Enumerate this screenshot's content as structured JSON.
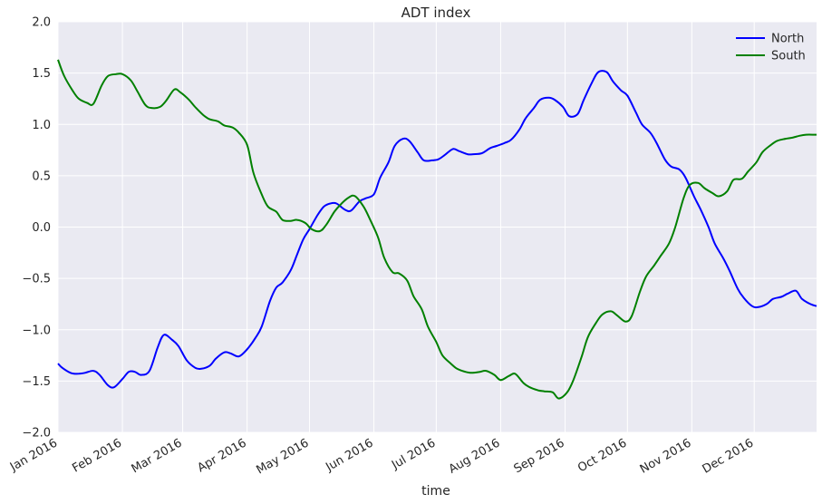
{
  "chart_data": {
    "type": "line",
    "title": "ADT index",
    "xlabel": "time",
    "ylabel": "",
    "ylim": [
      -2.0,
      2.0
    ],
    "yticks": [
      -2.0,
      -1.5,
      -1.0,
      -0.5,
      0.0,
      0.5,
      1.0,
      1.5,
      2.0
    ],
    "ytick_labels": [
      "−2.0",
      "−1.5",
      "−1.0",
      "−0.5",
      "0.0",
      "0.5",
      "1.0",
      "1.5",
      "2.0"
    ],
    "xlim": [
      "2016-01-01",
      "2016-12-31"
    ],
    "xticks": [
      "2016-01-01",
      "2016-02-01",
      "2016-03-01",
      "2016-04-01",
      "2016-05-01",
      "2016-06-01",
      "2016-07-01",
      "2016-08-01",
      "2016-09-01",
      "2016-10-01",
      "2016-11-01",
      "2016-12-01"
    ],
    "xtick_labels": [
      "Jan 2016",
      "Feb 2016",
      "Mar 2016",
      "Apr 2016",
      "May 2016",
      "Jun 2016",
      "Jul 2016",
      "Aug 2016",
      "Sep 2016",
      "Oct 2016",
      "Nov 2016",
      "Dec 2016"
    ],
    "grid": true,
    "legend_position": "top-right",
    "background_color": "#EAEAF2",
    "series": [
      {
        "name": "North",
        "color": "#0000FF",
        "x": [
          "2016-01-01",
          "2016-01-03",
          "2016-01-07",
          "2016-01-10",
          "2016-01-14",
          "2016-01-18",
          "2016-01-21",
          "2016-01-25",
          "2016-01-28",
          "2016-02-01",
          "2016-02-04",
          "2016-02-07",
          "2016-02-10",
          "2016-02-14",
          "2016-02-18",
          "2016-02-21",
          "2016-02-25",
          "2016-02-28",
          "2016-03-03",
          "2016-03-07",
          "2016-03-10",
          "2016-03-14",
          "2016-03-17",
          "2016-03-21",
          "2016-03-24",
          "2016-03-28",
          "2016-04-01",
          "2016-04-05",
          "2016-04-08",
          "2016-04-12",
          "2016-04-15",
          "2016-04-18",
          "2016-04-22",
          "2016-04-25",
          "2016-04-28",
          "2016-05-01",
          "2016-05-05",
          "2016-05-08",
          "2016-05-11",
          "2016-05-14",
          "2016-05-18",
          "2016-05-21",
          "2016-05-25",
          "2016-05-28",
          "2016-06-01",
          "2016-06-04",
          "2016-06-08",
          "2016-06-11",
          "2016-06-15",
          "2016-06-18",
          "2016-06-22",
          "2016-06-25",
          "2016-06-29",
          "2016-07-02",
          "2016-07-05",
          "2016-07-09",
          "2016-07-12",
          "2016-07-16",
          "2016-07-19",
          "2016-07-23",
          "2016-07-27",
          "2016-07-30",
          "2016-08-03",
          "2016-08-06",
          "2016-08-10",
          "2016-08-13",
          "2016-08-17",
          "2016-08-20",
          "2016-08-24",
          "2016-08-27",
          "2016-08-31",
          "2016-09-03",
          "2016-09-07",
          "2016-09-10",
          "2016-09-14",
          "2016-09-17",
          "2016-09-21",
          "2016-09-24",
          "2016-09-28",
          "2016-10-01",
          "2016-10-05",
          "2016-10-08",
          "2016-10-12",
          "2016-10-15",
          "2016-10-19",
          "2016-10-22",
          "2016-10-26",
          "2016-10-29",
          "2016-11-02",
          "2016-11-05",
          "2016-11-09",
          "2016-11-12",
          "2016-11-16",
          "2016-11-19",
          "2016-11-23",
          "2016-11-26",
          "2016-11-30",
          "2016-12-03",
          "2016-12-07",
          "2016-12-10",
          "2016-12-14",
          "2016-12-17",
          "2016-12-21",
          "2016-12-24",
          "2016-12-28",
          "2016-12-31"
        ],
        "y": [
          -1.33,
          -1.37,
          -1.42,
          -1.43,
          -1.42,
          -1.4,
          -1.44,
          -1.54,
          -1.56,
          -1.48,
          -1.41,
          -1.41,
          -1.44,
          -1.4,
          -1.17,
          -1.05,
          -1.1,
          -1.16,
          -1.3,
          -1.37,
          -1.38,
          -1.35,
          -1.28,
          -1.22,
          -1.23,
          -1.26,
          -1.19,
          -1.08,
          -0.97,
          -0.72,
          -0.59,
          -0.54,
          -0.42,
          -0.27,
          -0.12,
          -0.02,
          0.12,
          0.2,
          0.23,
          0.23,
          0.17,
          0.16,
          0.25,
          0.28,
          0.32,
          0.48,
          0.63,
          0.79,
          0.86,
          0.84,
          0.73,
          0.65,
          0.65,
          0.66,
          0.7,
          0.76,
          0.74,
          0.71,
          0.71,
          0.72,
          0.77,
          0.79,
          0.82,
          0.85,
          0.95,
          1.06,
          1.16,
          1.24,
          1.26,
          1.24,
          1.17,
          1.08,
          1.1,
          1.24,
          1.41,
          1.51,
          1.51,
          1.42,
          1.33,
          1.28,
          1.12,
          1.0,
          0.92,
          0.82,
          0.66,
          0.59,
          0.56,
          0.48,
          0.3,
          0.18,
          0.0,
          -0.16,
          -0.3,
          -0.42,
          -0.6,
          -0.69,
          -0.77,
          -0.78,
          -0.75,
          -0.7,
          -0.68,
          -0.65,
          -0.62,
          -0.7,
          -0.75,
          -0.77
        ]
      },
      {
        "name": "South",
        "color": "#008000",
        "x": [
          "2016-01-01",
          "2016-01-04",
          "2016-01-08",
          "2016-01-11",
          "2016-01-15",
          "2016-01-18",
          "2016-01-22",
          "2016-01-25",
          "2016-01-29",
          "2016-02-01",
          "2016-02-05",
          "2016-02-08",
          "2016-02-12",
          "2016-02-15",
          "2016-02-19",
          "2016-02-22",
          "2016-02-26",
          "2016-02-29",
          "2016-03-04",
          "2016-03-07",
          "2016-03-11",
          "2016-03-14",
          "2016-03-18",
          "2016-03-21",
          "2016-03-25",
          "2016-03-28",
          "2016-04-01",
          "2016-04-04",
          "2016-04-08",
          "2016-04-11",
          "2016-04-15",
          "2016-04-18",
          "2016-04-22",
          "2016-04-25",
          "2016-04-29",
          "2016-05-02",
          "2016-05-06",
          "2016-05-09",
          "2016-05-13",
          "2016-05-16",
          "2016-05-20",
          "2016-05-23",
          "2016-05-27",
          "2016-05-30",
          "2016-06-03",
          "2016-06-06",
          "2016-06-10",
          "2016-06-13",
          "2016-06-17",
          "2016-06-20",
          "2016-06-24",
          "2016-06-27",
          "2016-07-01",
          "2016-07-04",
          "2016-07-08",
          "2016-07-11",
          "2016-07-15",
          "2016-07-18",
          "2016-07-22",
          "2016-07-25",
          "2016-07-29",
          "2016-08-01",
          "2016-08-05",
          "2016-08-08",
          "2016-08-12",
          "2016-08-15",
          "2016-08-19",
          "2016-08-22",
          "2016-08-26",
          "2016-08-29",
          "2016-09-02",
          "2016-09-05",
          "2016-09-09",
          "2016-09-12",
          "2016-09-16",
          "2016-09-19",
          "2016-09-23",
          "2016-09-26",
          "2016-09-30",
          "2016-10-03",
          "2016-10-07",
          "2016-10-10",
          "2016-10-14",
          "2016-10-17",
          "2016-10-21",
          "2016-10-24",
          "2016-10-28",
          "2016-10-31",
          "2016-11-04",
          "2016-11-07",
          "2016-11-11",
          "2016-11-14",
          "2016-11-18",
          "2016-11-21",
          "2016-11-25",
          "2016-11-28",
          "2016-12-02",
          "2016-12-05",
          "2016-12-09",
          "2016-12-12",
          "2016-12-16",
          "2016-12-19",
          "2016-12-23",
          "2016-12-26",
          "2016-12-30",
          "2016-12-31"
        ],
        "y": [
          1.63,
          1.47,
          1.33,
          1.25,
          1.21,
          1.2,
          1.38,
          1.47,
          1.49,
          1.49,
          1.43,
          1.33,
          1.19,
          1.16,
          1.17,
          1.23,
          1.34,
          1.31,
          1.24,
          1.17,
          1.09,
          1.05,
          1.03,
          0.99,
          0.97,
          0.92,
          0.8,
          0.53,
          0.32,
          0.2,
          0.15,
          0.07,
          0.06,
          0.07,
          0.04,
          -0.02,
          -0.04,
          0.02,
          0.15,
          0.22,
          0.29,
          0.3,
          0.2,
          0.08,
          -0.1,
          -0.3,
          -0.44,
          -0.45,
          -0.52,
          -0.67,
          -0.8,
          -0.97,
          -1.12,
          -1.25,
          -1.33,
          -1.38,
          -1.41,
          -1.42,
          -1.41,
          -1.4,
          -1.44,
          -1.49,
          -1.45,
          -1.43,
          -1.52,
          -1.56,
          -1.59,
          -1.6,
          -1.61,
          -1.67,
          -1.61,
          -1.49,
          -1.26,
          -1.07,
          -0.93,
          -0.85,
          -0.82,
          -0.86,
          -0.92,
          -0.87,
          -0.63,
          -0.48,
          -0.37,
          -0.28,
          -0.16,
          0.0,
          0.28,
          0.41,
          0.43,
          0.38,
          0.33,
          0.3,
          0.35,
          0.46,
          0.47,
          0.54,
          0.63,
          0.73,
          0.8,
          0.84,
          0.86,
          0.87,
          0.89,
          0.9,
          0.9,
          0.9
        ]
      }
    ]
  }
}
